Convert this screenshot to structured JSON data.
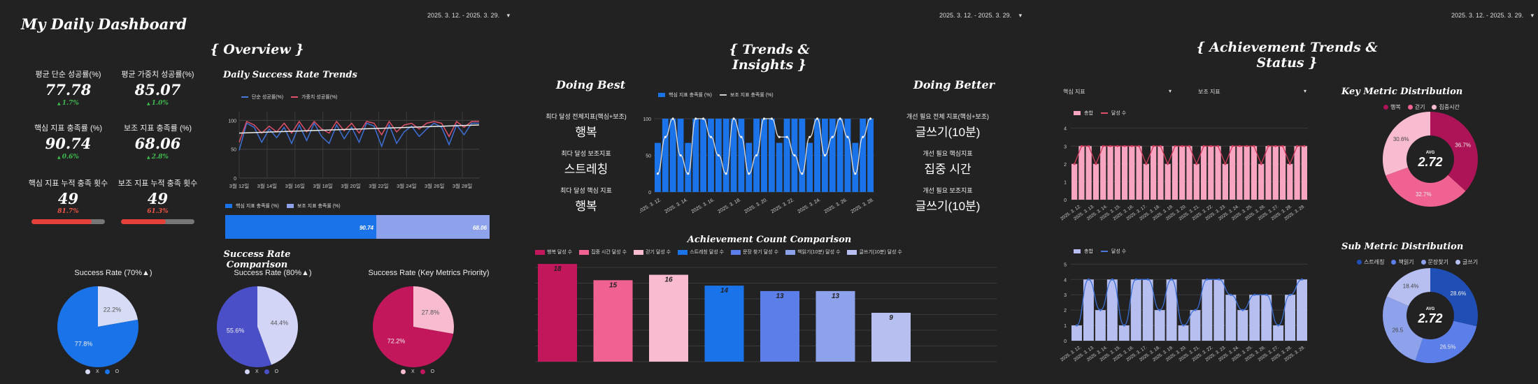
{
  "title": "My Daily Dashboard",
  "date_range": "2025. 3. 12. - 2025. 3. 29.",
  "sections": {
    "overview": "{ Overview }",
    "trends": "{ Trends & Insights }",
    "achievement": "{ Achievement Trends & Status }"
  },
  "kpis": [
    {
      "label": "평균 단순 성공률(%)",
      "value": "77.78",
      "delta": "1.7%",
      "dir": "up"
    },
    {
      "label": "평균 가중치 성공률(%)",
      "value": "85.07",
      "delta": "1.0%",
      "dir": "up"
    },
    {
      "label": "핵심 지표 충족률 (%)",
      "value": "90.74",
      "delta": "0.6%",
      "dir": "up"
    },
    {
      "label": "보조 지표 충족률 (%)",
      "value": "68.06",
      "delta": "2.8%",
      "dir": "up"
    },
    {
      "label": "핵심 지표 누적 충족 횟수",
      "value": "49",
      "delta": "81.7%",
      "progress": 0.817
    },
    {
      "label": "보조 지표 누적 충족 횟수",
      "value": "49",
      "delta": "61.3%",
      "progress": 0.613
    }
  ],
  "daily_trend": {
    "title": "Daily Success Rate Trends",
    "legend": [
      "단순 성공률(%)",
      "가중치 성공률(%)"
    ],
    "yticks": [
      "100",
      "50",
      "0"
    ],
    "xticks": [
      "3월 12일",
      "3월 14일",
      "3월 16일",
      "3월 18일",
      "3월 20일",
      "3월 22일",
      "3월 24일",
      "3월 26일",
      "3월 28일"
    ],
    "simple": [
      48,
      95,
      88,
      62,
      85,
      70,
      88,
      60,
      92,
      65,
      95,
      72,
      60,
      92,
      68,
      88,
      62,
      95,
      90,
      55,
      92,
      60,
      80,
      90,
      72,
      85,
      95,
      88,
      58,
      92,
      75,
      95,
      95
    ],
    "weighted": [
      62,
      98,
      92,
      78,
      90,
      80,
      95,
      78,
      98,
      80,
      98,
      85,
      78,
      98,
      82,
      95,
      78,
      98,
      95,
      75,
      98,
      80,
      92,
      95,
      85,
      95,
      98,
      95,
      72,
      98,
      88,
      98,
      98
    ],
    "trend": [
      78,
      92
    ]
  },
  "hbar": {
    "legend": [
      "핵심 지표 충족률 (%)",
      "보조 지표 충족률 (%)"
    ],
    "core": 90.74,
    "core_label": "90.74",
    "sub": 68.06,
    "sub_label": "68.06"
  },
  "success_compare": {
    "title": "Success Rate Comparison",
    "pies": [
      {
        "title": "Success Rate (70%▲)",
        "o": 77.8,
        "x": 22.2,
        "o_label": "77.8%",
        "x_label": "22.2%",
        "o_color": "#1a73e8",
        "x_color": "#d6dcf5"
      },
      {
        "title": "Success Rate (80%▲)",
        "o": 55.6,
        "x": 44.4,
        "o_label": "55.6%",
        "x_label": "44.4%",
        "o_color": "#4a4fc8",
        "x_color": "#d3d5f7"
      },
      {
        "title": "Success Rate (Key Metrics Priority)",
        "o": 72.2,
        "x": 27.8,
        "o_label": "72.2%",
        "x_label": "27.8%",
        "o_color": "#c2185b",
        "x_color": "#f8bbd0"
      }
    ],
    "legend": [
      "X",
      "O"
    ]
  },
  "doing_best": {
    "title": "Doing Best",
    "items": [
      {
        "label": "최다 달성 전체지표(핵심+보조)",
        "value": "행복"
      },
      {
        "label": "최다 달성 보조지표",
        "value": "스트레칭"
      },
      {
        "label": "최다 달성 핵심 지표",
        "value": "행복"
      }
    ]
  },
  "doing_better": {
    "title": "Doing Better",
    "items": [
      {
        "label": "개선 필요 전체 지표(핵심+보조)",
        "value": "글쓰기(10분)"
      },
      {
        "label": "개선 필요 핵심지표",
        "value": "집중 시간"
      },
      {
        "label": "개선 필요 보조지표",
        "value": "글쓰기(10분)"
      }
    ]
  },
  "mid_chart": {
    "legend": [
      "핵심 지표 충족률 (%)",
      "보조 지표 충족률 (%)"
    ],
    "yticks": [
      "100",
      "50",
      "0"
    ],
    "xticks": [
      "2025. 3. 12.",
      "2025. 3. 14.",
      "2025. 3. 16.",
      "2025. 3. 18.",
      "2025. 3. 20.",
      "2025. 3. 22.",
      "2025. 3. 24.",
      "2025. 3. 26.",
      "2025. 3. 28."
    ],
    "bars": [
      67,
      100,
      100,
      100,
      67,
      100,
      100,
      100,
      100,
      100,
      100,
      100,
      67,
      100,
      100,
      100,
      67,
      100,
      100,
      100,
      67,
      100,
      100,
      100,
      100,
      100,
      67,
      100,
      100
    ],
    "line": [
      25,
      75,
      100,
      50,
      25,
      100,
      100,
      75,
      50,
      25,
      100,
      75,
      25,
      50,
      100,
      100,
      75,
      75,
      50,
      25,
      75,
      100,
      50,
      75,
      100,
      75,
      25,
      75,
      100
    ]
  },
  "achievement_compare": {
    "title": "Achievement Count Comparison",
    "legend": [
      "행복 달성 수",
      "집중 시간 달성 수",
      "걷기 달성 수",
      "스트레칭 달성 수",
      "문장 찾기 달성 수",
      "책읽기(10분) 달성 수",
      "글쓰기(10분) 달성 수"
    ],
    "values": [
      18,
      15,
      16,
      14,
      13,
      13,
      9
    ],
    "labels": [
      "18",
      "15",
      "16",
      "14",
      "13",
      "13",
      "9"
    ],
    "colors": [
      "#c2185b",
      "#f06292",
      "#f8bbd0",
      "#1a73e8",
      "#5c7ee8",
      "#8ea2ec",
      "#b7bff0"
    ],
    "max": 18
  },
  "core_filter": {
    "label": "핵심 지표"
  },
  "sub_filter": {
    "label": "보조 지표"
  },
  "core_chart": {
    "legend": [
      "총합",
      "달성 수"
    ],
    "yticks": [
      "4",
      "3",
      "2",
      "1",
      "0"
    ],
    "xticks": [
      "2025. 3. 12.",
      "2025. 3. 13.",
      "2025. 3. 14.",
      "2025. 3. 15.",
      "2025. 3. 16.",
      "2025. 3. 17.",
      "2025. 3. 18.",
      "2025. 3. 19.",
      "2025. 3. 20.",
      "2025. 3. 21.",
      "2025. 3. 22.",
      "2025. 3. 23.",
      "2025. 3. 24.",
      "2025. 3. 25.",
      "2025. 3. 26.",
      "2025. 3. 27.",
      "2025. 3. 28.",
      "2025. 3. 29."
    ],
    "totals": [
      2,
      3,
      3,
      2,
      3,
      3,
      3,
      3,
      3,
      3,
      2,
      3,
      3,
      2,
      3,
      3,
      3,
      2,
      3,
      3,
      3,
      2,
      3,
      3,
      3,
      3,
      2,
      3,
      3,
      3,
      2,
      3,
      3
    ],
    "achieved": [
      2,
      3,
      3,
      2,
      3,
      3,
      3,
      3,
      3,
      3,
      2,
      3,
      3,
      2,
      3,
      3,
      3,
      2,
      3,
      3,
      3,
      2,
      3,
      3,
      3,
      3,
      2,
      3,
      3,
      3,
      2,
      3,
      3
    ]
  },
  "sub_chart": {
    "legend": [
      "총합",
      "달성 수"
    ],
    "yticks": [
      "5",
      "4",
      "3",
      "2",
      "1",
      "0"
    ],
    "xticks": [
      "2025. 3. 12.",
      "2025. 3. 13.",
      "2025. 3. 14.",
      "2025. 3. 15.",
      "2025. 3. 16.",
      "2025. 3. 17.",
      "2025. 3. 18.",
      "2025. 3. 19.",
      "2025. 3. 20.",
      "2025. 3. 21.",
      "2025. 3. 22.",
      "2025. 3. 23.",
      "2025. 3. 24.",
      "2025. 3. 25.",
      "2025. 3. 26.",
      "2025. 3. 27.",
      "2025. 3. 28.",
      "2025. 3. 29."
    ],
    "totals": [
      1,
      4,
      2,
      4,
      1,
      4,
      4,
      2,
      4,
      1,
      2,
      4,
      4,
      3,
      2,
      3,
      3,
      1,
      3,
      4
    ],
    "achieved": [
      1,
      4,
      2,
      4,
      1,
      4,
      4,
      2,
      4,
      1,
      2,
      4,
      4,
      3,
      2,
      3,
      3,
      1,
      3,
      4
    ]
  },
  "key_dist": {
    "title": "Key Metric Distribution",
    "legend": [
      "행복",
      "걷기",
      "집중시간"
    ],
    "values": [
      36.7,
      32.7,
      30.6
    ],
    "labels": [
      "36.7%",
      "32.7%",
      "30.6%"
    ],
    "colors": [
      "#ad1457",
      "#f06292",
      "#f8bbd0"
    ],
    "avg_label": "AVG",
    "avg": "2.72"
  },
  "sub_dist": {
    "title": "Sub Metric Distribution",
    "legend": [
      "스트레칭",
      "책읽기",
      "문장찾기",
      "글쓰기"
    ],
    "values": [
      28.6,
      26.5,
      26.5,
      18.4
    ],
    "labels": [
      "28.6%",
      "26.5%",
      "26.5",
      "18.4%"
    ],
    "colors": [
      "#1f4fb4",
      "#5c7ee8",
      "#8ea2ec",
      "#b7bff0"
    ],
    "avg_label": "AVG",
    "avg": "2.72"
  }
}
